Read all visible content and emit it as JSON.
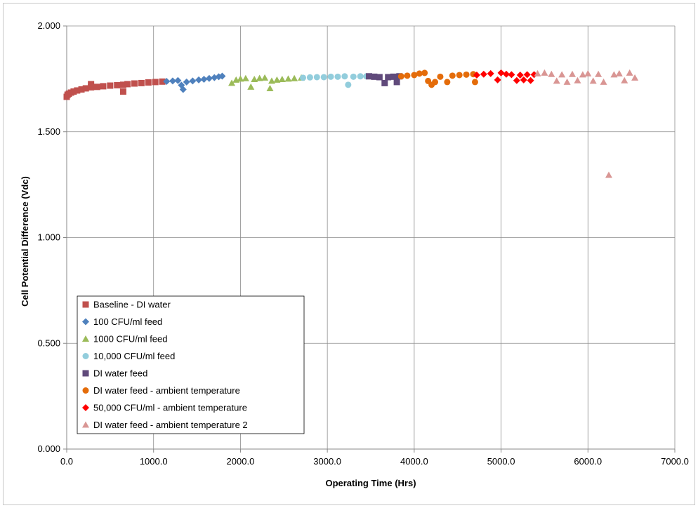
{
  "chart_data": {
    "type": "scatter",
    "title": "",
    "xlabel": "Operating Time (Hrs)",
    "ylabel": "Cell Potential Difference (Vdc)",
    "xlim": [
      0,
      7000
    ],
    "ylim": [
      0,
      2
    ],
    "x_ticks": [
      {
        "value": 0,
        "label": "0.0"
      },
      {
        "value": 1000,
        "label": "1000.0"
      },
      {
        "value": 2000,
        "label": "2000.0"
      },
      {
        "value": 3000,
        "label": "3000.0"
      },
      {
        "value": 4000,
        "label": "4000.0"
      },
      {
        "value": 5000,
        "label": "5000.0"
      },
      {
        "value": 6000,
        "label": "6000.0"
      },
      {
        "value": 7000,
        "label": "7000.0"
      }
    ],
    "y_ticks": [
      {
        "value": 0,
        "label": "0.000"
      },
      {
        "value": 0.5,
        "label": "0.500"
      },
      {
        "value": 1,
        "label": "1.000"
      },
      {
        "value": 1.5,
        "label": "1.500"
      },
      {
        "value": 2,
        "label": "2.000"
      }
    ],
    "grid": true,
    "legend_position": "bottom-left",
    "series": [
      {
        "name": "Baseline - DI water",
        "marker": "square",
        "color": "#C0504D",
        "points": [
          [
            0,
            1.665
          ],
          [
            10,
            1.675
          ],
          [
            25,
            1.68
          ],
          [
            50,
            1.685
          ],
          [
            80,
            1.69
          ],
          [
            120,
            1.695
          ],
          [
            170,
            1.7
          ],
          [
            220,
            1.705
          ],
          [
            280,
            1.71
          ],
          [
            280,
            1.725
          ],
          [
            350,
            1.712
          ],
          [
            420,
            1.715
          ],
          [
            500,
            1.718
          ],
          [
            580,
            1.72
          ],
          [
            650,
            1.722
          ],
          [
            650,
            1.69
          ],
          [
            700,
            1.725
          ],
          [
            780,
            1.728
          ],
          [
            860,
            1.73
          ],
          [
            940,
            1.733
          ],
          [
            1020,
            1.735
          ],
          [
            1100,
            1.737
          ]
        ]
      },
      {
        "name": "100 CFU/ml feed",
        "marker": "diamond",
        "color": "#4F81BD",
        "points": [
          [
            1150,
            1.738
          ],
          [
            1220,
            1.74
          ],
          [
            1280,
            1.742
          ],
          [
            1320,
            1.72
          ],
          [
            1340,
            1.7
          ],
          [
            1380,
            1.735
          ],
          [
            1450,
            1.74
          ],
          [
            1520,
            1.745
          ],
          [
            1580,
            1.748
          ],
          [
            1640,
            1.752
          ],
          [
            1700,
            1.756
          ],
          [
            1750,
            1.76
          ],
          [
            1790,
            1.763
          ]
        ]
      },
      {
        "name": "1000 CFU/ml feed",
        "marker": "triangle",
        "color": "#9BBB59",
        "points": [
          [
            1900,
            1.73
          ],
          [
            1950,
            1.745
          ],
          [
            2000,
            1.75
          ],
          [
            2060,
            1.752
          ],
          [
            2120,
            1.712
          ],
          [
            2160,
            1.748
          ],
          [
            2220,
            1.753
          ],
          [
            2280,
            1.755
          ],
          [
            2340,
            1.705
          ],
          [
            2360,
            1.74
          ],
          [
            2420,
            1.745
          ],
          [
            2480,
            1.748
          ],
          [
            2550,
            1.75
          ],
          [
            2620,
            1.752
          ],
          [
            2700,
            1.755
          ]
        ]
      },
      {
        "name": "10,000 CFU/ml feed",
        "marker": "circle",
        "color": "#92CDDC",
        "points": [
          [
            2720,
            1.755
          ],
          [
            2800,
            1.757
          ],
          [
            2880,
            1.758
          ],
          [
            2960,
            1.758
          ],
          [
            3040,
            1.76
          ],
          [
            3120,
            1.76
          ],
          [
            3200,
            1.762
          ],
          [
            3240,
            1.722
          ],
          [
            3300,
            1.76
          ],
          [
            3380,
            1.762
          ],
          [
            3450,
            1.762
          ]
        ]
      },
      {
        "name": "DI water feed",
        "marker": "square",
        "color": "#604A7B",
        "points": [
          [
            3480,
            1.762
          ],
          [
            3540,
            1.76
          ],
          [
            3600,
            1.758
          ],
          [
            3660,
            1.73
          ],
          [
            3700,
            1.758
          ],
          [
            3760,
            1.76
          ],
          [
            3800,
            1.735
          ],
          [
            3830,
            1.762
          ]
        ]
      },
      {
        "name": "DI water feed - ambient temperature",
        "marker": "circle",
        "color": "#E46C0A",
        "points": [
          [
            3850,
            1.762
          ],
          [
            3920,
            1.765
          ],
          [
            4000,
            1.768
          ],
          [
            4060,
            1.775
          ],
          [
            4120,
            1.778
          ],
          [
            4160,
            1.74
          ],
          [
            4200,
            1.722
          ],
          [
            4240,
            1.735
          ],
          [
            4300,
            1.76
          ],
          [
            4380,
            1.735
          ],
          [
            4440,
            1.765
          ],
          [
            4520,
            1.768
          ],
          [
            4600,
            1.77
          ],
          [
            4680,
            1.772
          ],
          [
            4700,
            1.735
          ]
        ]
      },
      {
        "name": "50,000 CFU/ml - ambient temperature",
        "marker": "diamond",
        "color": "#FF0000",
        "points": [
          [
            4720,
            1.768
          ],
          [
            4800,
            1.772
          ],
          [
            4880,
            1.775
          ],
          [
            4960,
            1.745
          ],
          [
            5000,
            1.778
          ],
          [
            5060,
            1.772
          ],
          [
            5120,
            1.77
          ],
          [
            5180,
            1.742
          ],
          [
            5220,
            1.768
          ],
          [
            5260,
            1.745
          ],
          [
            5300,
            1.77
          ],
          [
            5340,
            1.742
          ],
          [
            5380,
            1.77
          ]
        ]
      },
      {
        "name": "DI water feed - ambient temperature 2",
        "marker": "triangle",
        "color": "#D99694",
        "points": [
          [
            5420,
            1.775
          ],
          [
            5500,
            1.778
          ],
          [
            5580,
            1.772
          ],
          [
            5640,
            1.74
          ],
          [
            5700,
            1.77
          ],
          [
            5760,
            1.735
          ],
          [
            5820,
            1.772
          ],
          [
            5880,
            1.742
          ],
          [
            5940,
            1.77
          ],
          [
            6000,
            1.775
          ],
          [
            6060,
            1.74
          ],
          [
            6120,
            1.772
          ],
          [
            6180,
            1.735
          ],
          [
            6240,
            1.295
          ],
          [
            6300,
            1.77
          ],
          [
            6360,
            1.775
          ],
          [
            6420,
            1.742
          ],
          [
            6480,
            1.778
          ],
          [
            6540,
            1.755
          ]
        ]
      }
    ]
  }
}
